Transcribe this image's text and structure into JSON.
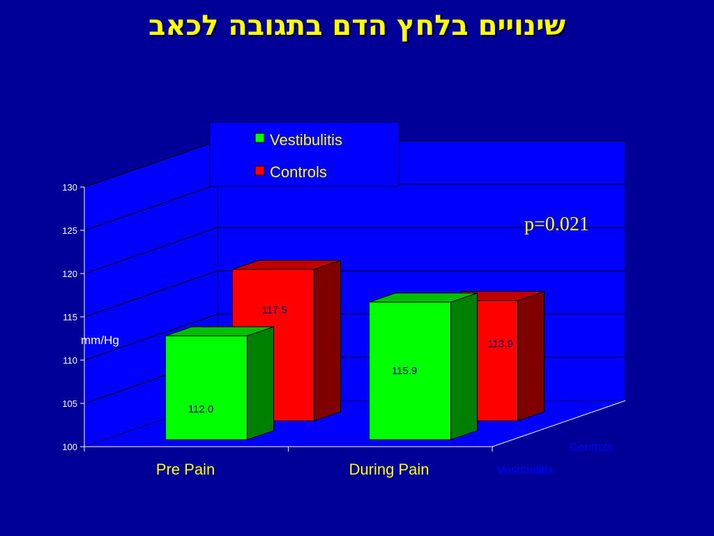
{
  "slide": {
    "title": "שינויים בלחץ הדם בתגובה לכאב"
  },
  "chart_data": {
    "type": "bar",
    "title": "שינויים בלחץ הדם בתגובה לכאב",
    "categories": [
      "Pre Pain",
      "During Pain"
    ],
    "series": [
      {
        "name": "Vestibulitis",
        "values": [
          112.0,
          115.9
        ],
        "color": "#00ff00"
      },
      {
        "name": "Controls",
        "values": [
          117.5,
          113.9
        ],
        "color": "#ff0000"
      }
    ],
    "value_labels": {
      "Vestibulitis": [
        "112.0",
        "115.9"
      ],
      "Controls": [
        "117.5",
        "113.9"
      ]
    },
    "ylabel": "mm/Hg",
    "xlabel": "",
    "ylim": [
      100,
      130
    ],
    "yticks": [
      100,
      105,
      110,
      115,
      120,
      125,
      130
    ],
    "depth_labels": [
      "Controls",
      "Vestibulitis"
    ],
    "legend": {
      "entries": [
        "Vestibulitis",
        "Controls"
      ],
      "placement": "top-center"
    },
    "annotation": "p=0.021",
    "grid": true,
    "three_d": true,
    "colors": {
      "background": "#000099",
      "walls": "#0000ff",
      "title": "#ffff00"
    }
  }
}
